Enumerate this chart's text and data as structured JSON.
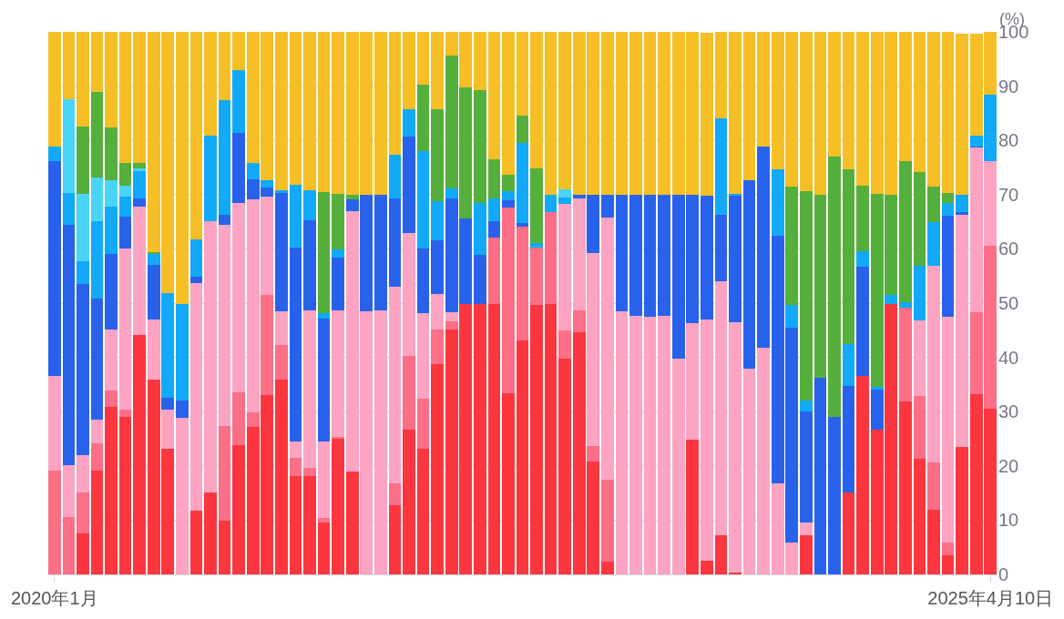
{
  "chart_data": {
    "type": "bar",
    "stacked": true,
    "ylabel": "(%)",
    "categories": [
      "2020年1月",
      null,
      null,
      null,
      null,
      null,
      null,
      null,
      null,
      null,
      null,
      null,
      null,
      null,
      null,
      null,
      null,
      null,
      null,
      null,
      null,
      null,
      null,
      null,
      null,
      null,
      null,
      null,
      null,
      null,
      null,
      null,
      null,
      null,
      null,
      null,
      null,
      null,
      null,
      null,
      null,
      null,
      null,
      null,
      null,
      null,
      null,
      null,
      null,
      null,
      null,
      null,
      null,
      null,
      null,
      null,
      null,
      null,
      null,
      null,
      null,
      null,
      null,
      null,
      null,
      null,
      "2025年4月10日"
    ],
    "ylim": [
      0,
      100
    ],
    "yticks": [
      0,
      10,
      20,
      30,
      40,
      50,
      60,
      70,
      80,
      90,
      100
    ],
    "grid": "y",
    "series": [
      {
        "color": "#fc363e",
        "values": [
          0,
          0,
          7.6,
          19.2,
          30.9,
          29.1,
          44.2,
          35.9,
          23.2,
          0,
          11.7,
          15.1,
          9.9,
          23.8,
          27.2,
          33.0,
          35.9,
          18.1,
          18.1,
          9.6,
          25.0,
          18.9,
          0,
          0,
          12.7,
          26.6,
          23.1,
          38.8,
          45.1,
          49.9,
          49.9,
          49.9,
          33.4,
          43.2,
          49.7,
          49.9,
          39.8,
          44.6,
          20.8,
          2.4,
          0,
          0,
          0,
          0,
          0,
          24.9,
          2.5,
          7.2,
          0.3,
          0,
          0,
          0,
          0,
          7.2,
          0,
          0,
          15.1,
          36.5,
          26.6,
          49.9,
          31.8,
          21.3,
          11.9,
          3.5,
          23.5,
          33.2,
          30.6
        ]
      },
      {
        "color": "#fd6e87",
        "values": [
          19.1,
          10.6,
          7.5,
          4.9,
          3.0,
          1.2,
          0,
          0,
          0,
          0,
          0,
          0,
          17.5,
          9.7,
          2.6,
          18.5,
          6.3,
          3.3,
          1.6,
          0.8,
          0.4,
          0,
          0,
          0,
          4.1,
          13.6,
          9.3,
          6.4,
          1.6,
          0,
          0,
          12.1,
          34.2,
          20.9,
          10.6,
          16.9,
          5.1,
          4.0,
          2.9,
          15.0,
          0,
          0,
          0,
          0,
          0,
          0,
          0,
          0,
          0,
          0,
          0,
          0,
          0,
          0,
          0,
          0,
          0,
          0,
          0,
          0,
          17.4,
          11.6,
          8.7,
          2.4,
          0,
          15.2,
          29.9
        ]
      },
      {
        "color": "#fda4c2",
        "values": [
          17.5,
          9.6,
          6.8,
          4.5,
          11.2,
          29.7,
          23.6,
          11.1,
          7.1,
          28.8,
          42.0,
          50.0,
          37.1,
          35.0,
          39.4,
          18.1,
          6.3,
          3.1,
          29.0,
          14.1,
          23.3,
          48.1,
          48.5,
          48.7,
          36.3,
          22.8,
          15.7,
          6.5,
          1.6,
          0,
          0,
          0,
          0,
          0,
          0,
          0,
          23.4,
          20.7,
          35.5,
          48.3,
          48.5,
          47.6,
          47.5,
          47.6,
          39.8,
          21.4,
          44.4,
          46.9,
          46.2,
          38.0,
          41.7,
          16.7,
          5.9,
          2.3,
          0,
          0,
          0,
          0,
          0,
          0,
          0,
          13.9,
          36.3,
          41.6,
          42.8,
          30.3,
          15.7
        ]
      },
      {
        "color": "#2962ea",
        "values": [
          39.5,
          44.3,
          31.7,
          22.3,
          13.9,
          5.9,
          1.5,
          10.1,
          2.2,
          3.2,
          1.2,
          0,
          1.8,
          12.8,
          3.7,
          1.7,
          21.8,
          35.8,
          16.5,
          22.7,
          9.7,
          2.2,
          21.4,
          21.2,
          16.2,
          17.7,
          12.0,
          9.8,
          21.0,
          15.7,
          9.0,
          3.1,
          1.4,
          0.6,
          0,
          0,
          0,
          0.6,
          10.7,
          4.2,
          21.4,
          22.3,
          22.4,
          22.3,
          30.1,
          23.6,
          22.9,
          12.2,
          23.3,
          34.7,
          37.2,
          45.8,
          39.6,
          20.6,
          36.3,
          29.1,
          19.7,
          20.2,
          7.5,
          0,
          0,
          0,
          0,
          18.6,
          0.5,
          0.2,
          0
        ]
      },
      {
        "color": "#12a9f8",
        "values": [
          2.8,
          5.8,
          4.1,
          14.2,
          8.8,
          3.8,
          5.1,
          1.9,
          19.4,
          17.9,
          6.8,
          15.7,
          21.2,
          11.7,
          3.0,
          1.4,
          0.5,
          11.5,
          5.6,
          1.0,
          1.5,
          0,
          0,
          0,
          8.1,
          5.1,
          17.9,
          7.3,
          1.9,
          0,
          9.5,
          4.2,
          1.7,
          14.9,
          0.7,
          3.1,
          1.1,
          0,
          0,
          0,
          0,
          0,
          0,
          0,
          0,
          0,
          0,
          17.7,
          0.4,
          0,
          0,
          12.1,
          4.2,
          1.9,
          0,
          0,
          7.6,
          2.9,
          0.4,
          1.6,
          1.0,
          10.1,
          8.1,
          2.4,
          3.1,
          2.0,
          12.3
        ]
      },
      {
        "color": "#4ad4f8",
        "values": [
          0,
          17.3,
          12.4,
          8.0,
          4.9,
          2.0,
          0.5,
          0,
          0,
          0,
          0,
          0,
          0,
          0,
          0,
          0,
          0,
          0,
          0,
          0,
          0,
          0,
          0,
          0,
          0,
          0,
          0,
          0,
          0,
          0,
          0,
          0,
          0,
          0,
          0,
          0,
          1.6,
          0,
          0,
          0,
          0,
          0,
          0,
          0,
          0,
          0,
          0,
          0,
          0,
          0,
          0,
          0,
          0,
          0,
          0,
          0,
          0,
          0,
          0,
          0,
          0,
          0,
          0,
          0,
          0,
          0,
          0
        ]
      },
      {
        "color": "#55af3c",
        "values": [
          0,
          0,
          12.5,
          15.8,
          9.6,
          4.2,
          1.0,
          0.4,
          0,
          0,
          0,
          0,
          0,
          0,
          0,
          0,
          0,
          0,
          0,
          22.2,
          10.2,
          0.7,
          0,
          0,
          0,
          0,
          12.2,
          17.0,
          24.5,
          24.2,
          20.9,
          7.2,
          3.0,
          4.9,
          13.8,
          0,
          0,
          0,
          0,
          0,
          0,
          0,
          0,
          0,
          0,
          0,
          0,
          0,
          0,
          0,
          0,
          0,
          21.8,
          38.6,
          33.6,
          47.9,
          32.2,
          12.0,
          35.6,
          18.4,
          25.9,
          17.2,
          6.5,
          1.8,
          0,
          0,
          0
        ]
      },
      {
        "color": "#f6bf26",
        "values": [
          21.1,
          12.4,
          17.4,
          11.1,
          17.7,
          24.1,
          24.1,
          40.6,
          48.1,
          50.1,
          38.3,
          19.2,
          12.5,
          7.0,
          24.1,
          27.3,
          29.2,
          28.2,
          29.2,
          29.6,
          29.9,
          30.1,
          30.1,
          30.1,
          22.6,
          14.2,
          9.8,
          14.2,
          4.3,
          10.2,
          10.7,
          23.5,
          26.3,
          15.5,
          25.2,
          30.1,
          29.0,
          30.1,
          30.1,
          30.1,
          30.1,
          30.1,
          30.1,
          30.1,
          30.1,
          30.1,
          30.1,
          16.0,
          29.8,
          27.3,
          21.1,
          25.4,
          28.5,
          29.4,
          30.1,
          23.0,
          25.4,
          28.4,
          29.9,
          30.1,
          23.9,
          25.9,
          28.5,
          29.7,
          29.8,
          18.8,
          11.5
        ]
      }
    ]
  }
}
